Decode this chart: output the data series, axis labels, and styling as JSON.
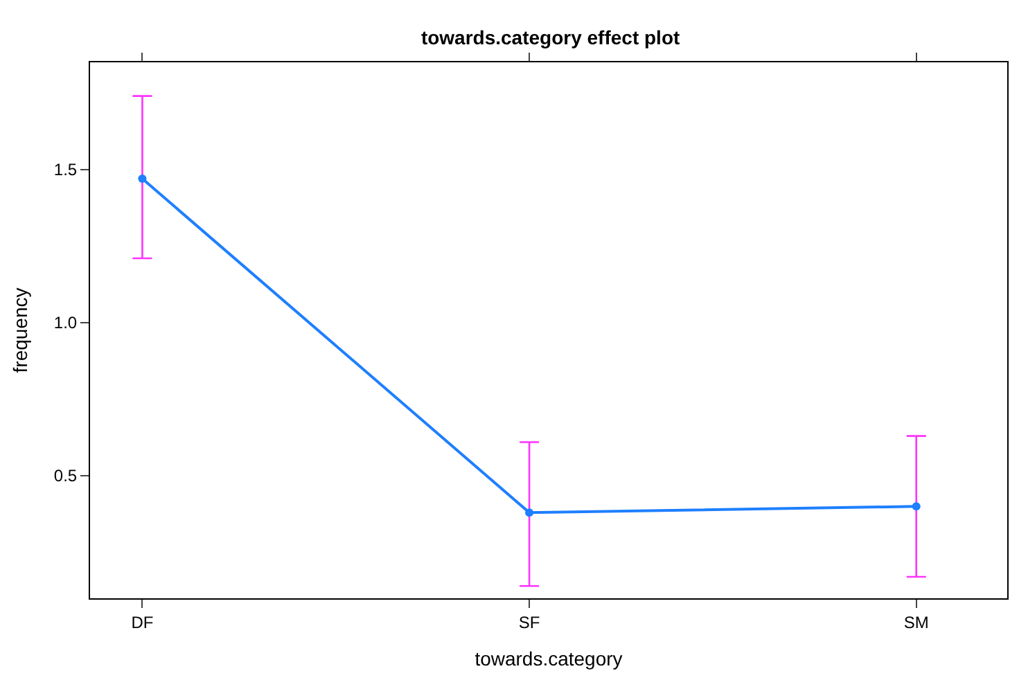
{
  "chart_data": {
    "type": "line",
    "title": "towards.category effect plot",
    "xlabel": "towards.category",
    "ylabel": "frequency",
    "categories": [
      "DF",
      "SF",
      "SM"
    ],
    "series": [
      {
        "color": "#1e7fff",
        "values": [
          1.47,
          0.38,
          0.4
        ],
        "errors": [
          [
            1.21,
            1.74
          ],
          [
            0.14,
            0.61
          ],
          [
            0.17,
            0.63
          ]
        ]
      }
    ],
    "ylim": [
      0.1,
      1.85
    ],
    "yticks": [
      0.5,
      {
        "value": 1.0,
        "label": "1.0"
      },
      1.5
    ],
    "legend": false,
    "marker": "circle",
    "line_style": "solid"
  }
}
